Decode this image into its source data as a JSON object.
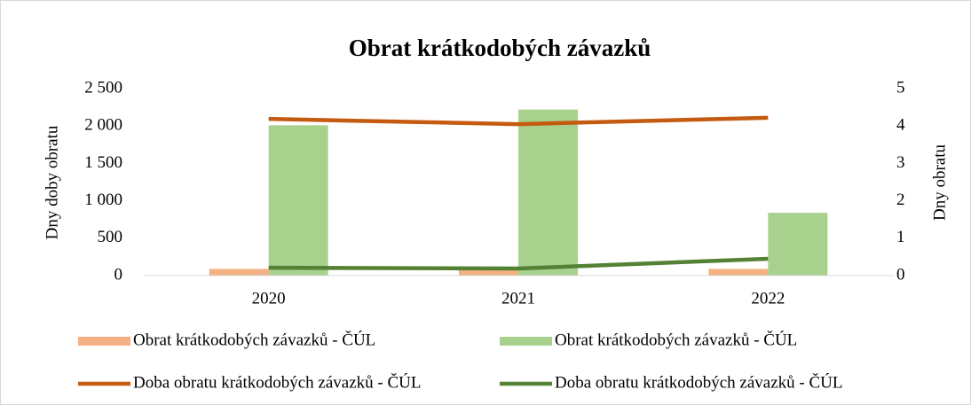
{
  "chart_data": {
    "type": "bar-line",
    "title": "Obrat krátkodobých závazků",
    "ylabel": "Dny doby obratu",
    "y2label": "Dny obratu",
    "categories": [
      "2020",
      "2021",
      "2022"
    ],
    "series": [
      {
        "name": "Obrat krátkodobých závazků - ČÚL",
        "type": "bar",
        "color": "#f4b183",
        "values": [
          90,
          80,
          90
        ]
      },
      {
        "name": "Obrat krátkodobých závazků - ČÚL",
        "type": "bar",
        "color": "#a9d18e",
        "values": [
          2010,
          2220,
          840
        ]
      },
      {
        "name": "Doba obratu krátkodobých závazků - ČÚL",
        "type": "line",
        "axis": "y2",
        "color": "#c55a11",
        "values": [
          4.19,
          4.05,
          4.22
        ]
      },
      {
        "name": "Doba obratu krátkodobých závazků - ČÚL",
        "type": "line",
        "axis": "y2",
        "color": "#548235",
        "values": [
          0.21,
          0.19,
          0.45
        ]
      }
    ],
    "ylim": [
      0,
      2500
    ],
    "yticks": [
      0,
      500,
      {
        "value": 1000,
        "label": "1 000"
      },
      {
        "value": 1500,
        "label": "1 500"
      },
      {
        "value": 2000,
        "label": "2 000"
      },
      {
        "value": 2500,
        "label": "2 500"
      }
    ],
    "y2lim": [
      0,
      5
    ],
    "y2ticks": [
      0,
      1,
      2,
      3,
      4,
      5
    ],
    "grid": false,
    "legend": "bottom"
  }
}
